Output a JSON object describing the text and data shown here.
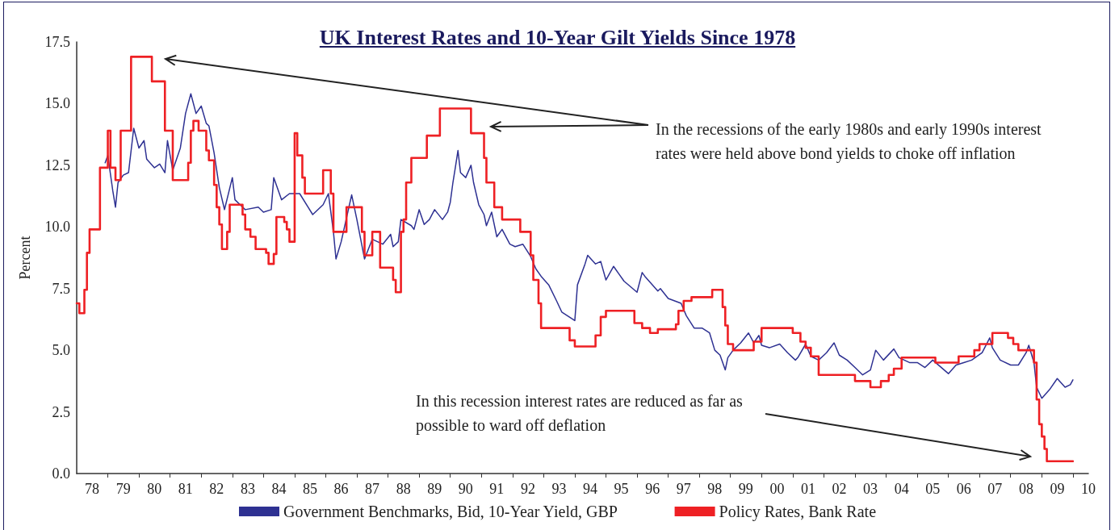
{
  "chart_data": {
    "type": "line",
    "title": "UK Interest Rates and 10-Year Gilt Yields Since 1978",
    "ylabel": "Percent",
    "annotations": [
      "In the recessions of the early 1980s and early 1990s interest rates were held above bond yields to choke off inflation",
      "In this recession interest rates are reduced as far as possible to ward off deflation"
    ],
    "xlim": [
      "1978-01",
      "2010-07"
    ],
    "xticks": [
      {
        "value": "1978-07",
        "label": "78"
      },
      {
        "value": "1979-01",
        "label": null
      },
      {
        "value": "1979-07",
        "label": "79"
      },
      {
        "value": "1980-01",
        "label": null
      },
      {
        "value": "1980-07",
        "label": "80"
      },
      {
        "value": "1981-01",
        "label": null
      },
      {
        "value": "1981-07",
        "label": "81"
      },
      {
        "value": "1982-01",
        "label": null
      },
      {
        "value": "1982-07",
        "label": "82"
      },
      {
        "value": "1983-01",
        "label": null
      },
      {
        "value": "1983-07",
        "label": "83"
      },
      {
        "value": "1984-01",
        "label": null
      },
      {
        "value": "1984-07",
        "label": "84"
      },
      {
        "value": "1985-01",
        "label": null
      },
      {
        "value": "1985-07",
        "label": "85"
      },
      {
        "value": "1986-01",
        "label": null
      },
      {
        "value": "1986-07",
        "label": "86"
      },
      {
        "value": "1987-01",
        "label": null
      },
      {
        "value": "1987-07",
        "label": "87"
      },
      {
        "value": "1988-01",
        "label": null
      },
      {
        "value": "1988-07",
        "label": "88"
      },
      {
        "value": "1989-01",
        "label": null
      },
      {
        "value": "1989-07",
        "label": "89"
      },
      {
        "value": "1990-01",
        "label": null
      },
      {
        "value": "1990-07",
        "label": "90"
      },
      {
        "value": "1991-01",
        "label": null
      },
      {
        "value": "1991-07",
        "label": "91"
      },
      {
        "value": "1992-01",
        "label": null
      },
      {
        "value": "1992-07",
        "label": "92"
      },
      {
        "value": "1993-01",
        "label": null
      },
      {
        "value": "1993-07",
        "label": "93"
      },
      {
        "value": "1994-01",
        "label": null
      },
      {
        "value": "1994-07",
        "label": "94"
      },
      {
        "value": "1995-01",
        "label": null
      },
      {
        "value": "1995-07",
        "label": "95"
      },
      {
        "value": "1996-01",
        "label": null
      },
      {
        "value": "1996-07",
        "label": "96"
      },
      {
        "value": "1997-01",
        "label": null
      },
      {
        "value": "1997-07",
        "label": "97"
      },
      {
        "value": "1998-01",
        "label": null
      },
      {
        "value": "1998-07",
        "label": "98"
      },
      {
        "value": "1999-01",
        "label": null
      },
      {
        "value": "1999-07",
        "label": "99"
      },
      {
        "value": "2000-01",
        "label": null
      },
      {
        "value": "2000-07",
        "label": "00"
      },
      {
        "value": "2001-01",
        "label": null
      },
      {
        "value": "2001-07",
        "label": "01"
      },
      {
        "value": "2002-01",
        "label": null
      },
      {
        "value": "2002-07",
        "label": "02"
      },
      {
        "value": "2003-01",
        "label": null
      },
      {
        "value": "2003-07",
        "label": "03"
      },
      {
        "value": "2004-01",
        "label": null
      },
      {
        "value": "2004-07",
        "label": "04"
      },
      {
        "value": "2005-01",
        "label": null
      },
      {
        "value": "2005-07",
        "label": "05"
      },
      {
        "value": "2006-01",
        "label": null
      },
      {
        "value": "2006-07",
        "label": "06"
      },
      {
        "value": "2007-01",
        "label": null
      },
      {
        "value": "2007-07",
        "label": "07"
      },
      {
        "value": "2008-01",
        "label": null
      },
      {
        "value": "2008-07",
        "label": "08"
      },
      {
        "value": "2009-01",
        "label": null
      },
      {
        "value": "2009-07",
        "label": "09"
      },
      {
        "value": "2010-01",
        "label": null
      },
      {
        "value": "2010-07",
        "label": "10"
      }
    ],
    "ylim": [
      0,
      17.5
    ],
    "yticks": [
      {
        "value": 0,
        "label": "0.0"
      },
      {
        "value": 2.5,
        "label": "2.5"
      },
      {
        "value": 5,
        "label": "5.0"
      },
      {
        "value": 7.5,
        "label": "7.5"
      },
      {
        "value": 10,
        "label": "10.0"
      },
      {
        "value": 12.5,
        "label": "12.5"
      },
      {
        "value": 15,
        "label": "15.0"
      },
      {
        "value": 17.5,
        "label": "17.5"
      }
    ],
    "grid": false,
    "legend": "bottom",
    "marker": "none",
    "line_style": "solid",
    "series": [
      {
        "name": "Government Benchmarks, Bid, 10-Year Yield, GBP",
        "color": "#2e3192",
        "x": [
          "1978-12",
          "1979-01",
          "1979-03",
          "1979-04",
          "1979-05",
          "1979-07",
          "1979-09",
          "1979-11",
          "1980-01",
          "1980-03",
          "1980-04",
          "1980-07",
          "1980-09",
          "1980-11",
          "1980-12",
          "1981-02",
          "1981-05",
          "1981-07",
          "1981-09",
          "1981-11",
          "1982-01",
          "1982-03",
          "1982-04",
          "1982-06",
          "1982-08",
          "1982-10",
          "1983-01",
          "1983-02",
          "1983-06",
          "1983-11",
          "1984-01",
          "1984-04",
          "1984-05",
          "1984-08",
          "1984-11",
          "1985-03",
          "1985-08",
          "1985-12",
          "1986-02",
          "1986-04",
          "1986-05",
          "1986-07",
          "1986-11",
          "1987-01",
          "1987-04",
          "1987-07",
          "1987-11",
          "1988-02",
          "1988-03",
          "1988-05",
          "1988-06",
          "1988-10",
          "1988-11",
          "1989-01",
          "1989-03",
          "1989-05",
          "1989-07",
          "1989-10",
          "1989-12",
          "1990-01",
          "1990-02",
          "1990-03",
          "1990-04",
          "1990-05",
          "1990-07",
          "1990-09",
          "1990-10",
          "1990-12",
          "1991-02",
          "1991-03",
          "1991-05",
          "1991-07",
          "1991-09",
          "1991-12",
          "1992-02",
          "1992-05",
          "1992-08",
          "1992-10",
          "1992-12",
          "1993-03",
          "1993-06",
          "1993-08",
          "1994-01",
          "1994-02",
          "1994-05",
          "1994-06",
          "1994-09",
          "1994-11",
          "1995-01",
          "1995-04",
          "1995-06",
          "1995-08",
          "1996-01",
          "1996-03",
          "1996-04",
          "1996-09",
          "1996-10",
          "1997-01",
          "1997-06",
          "1997-08",
          "1997-11",
          "1998-02",
          "1998-05",
          "1998-07",
          "1998-09",
          "1998-11",
          "1998-12",
          "1999-02",
          "1999-05",
          "1999-08",
          "1999-10",
          "1999-12",
          "2000-01",
          "2000-04",
          "2000-08",
          "2000-11",
          "2001-02",
          "2001-03",
          "2001-06",
          "2001-08",
          "2001-11",
          "2002-02",
          "2002-05",
          "2002-07",
          "2002-10",
          "2003-01",
          "2003-04",
          "2003-07",
          "2003-09",
          "2003-12",
          "2004-04",
          "2004-06",
          "2004-10",
          "2005-01",
          "2005-04",
          "2005-07",
          "2006-01",
          "2006-04",
          "2006-07",
          "2006-10",
          "2007-02",
          "2007-05",
          "2007-06",
          "2007-09",
          "2008-01",
          "2008-04",
          "2008-07",
          "2008-08",
          "2008-10",
          "2008-11",
          "2009-01",
          "2009-04",
          "2009-07",
          "2009-10",
          "2009-12",
          "2010-01"
        ],
        "values": [
          12.6,
          12.9,
          11.45,
          10.8,
          11.8,
          12.1,
          12.2,
          14.0,
          13.2,
          13.5,
          12.75,
          12.4,
          12.55,
          12.2,
          13.5,
          12.3,
          13.2,
          14.6,
          15.4,
          14.6,
          14.9,
          14.2,
          14.1,
          13.0,
          11.6,
          10.7,
          12.0,
          11.1,
          10.7,
          10.8,
          10.6,
          10.7,
          12.0,
          11.1,
          11.35,
          11.35,
          10.5,
          10.9,
          11.35,
          9.8,
          8.7,
          9.4,
          11.3,
          10.3,
          8.7,
          9.5,
          9.3,
          9.7,
          9.2,
          9.4,
          10.3,
          10.05,
          9.9,
          10.7,
          10.1,
          10.3,
          10.7,
          10.3,
          10.6,
          11.0,
          11.8,
          12.4,
          13.1,
          12.2,
          12.0,
          12.5,
          11.8,
          10.9,
          10.5,
          10.05,
          10.6,
          9.6,
          9.9,
          9.3,
          9.2,
          9.3,
          8.8,
          8.3,
          8.0,
          7.65,
          7.0,
          6.55,
          6.2,
          7.65,
          8.5,
          8.85,
          8.5,
          8.6,
          7.85,
          8.4,
          8.1,
          7.8,
          7.35,
          8.15,
          8.0,
          7.4,
          7.5,
          7.1,
          6.9,
          6.4,
          5.9,
          5.9,
          5.7,
          5.0,
          4.8,
          4.2,
          4.7,
          5.0,
          5.3,
          5.7,
          5.3,
          5.6,
          5.2,
          5.1,
          5.25,
          4.9,
          4.6,
          4.7,
          5.25,
          4.75,
          4.6,
          4.9,
          5.3,
          4.8,
          4.6,
          4.3,
          4.0,
          4.2,
          5.0,
          4.6,
          5.05,
          4.7,
          4.5,
          4.5,
          4.3,
          4.6,
          4.05,
          4.4,
          4.5,
          4.6,
          4.9,
          5.5,
          5.1,
          4.6,
          4.4,
          4.4,
          4.9,
          5.2,
          4.5,
          3.5,
          3.05,
          3.4,
          3.85,
          3.5,
          3.6,
          3.8
        ]
      },
      {
        "name": "Policy Rates, Bank Rate",
        "type": "step",
        "color": "#ee2024",
        "x": [
          "1978-01",
          "1978-02",
          "1978-04",
          "1978-05",
          "1978-06",
          "1978-10",
          "1979-01",
          "1979-02",
          "1979-04",
          "1979-06",
          "1979-10",
          "1980-06",
          "1980-11",
          "1981-02",
          "1981-08",
          "1981-09",
          "1981-10",
          "1981-12",
          "1982-03",
          "1982-04",
          "1982-06",
          "1982-07",
          "1982-08",
          "1982-09",
          "1982-11",
          "1982-12",
          "1983-05",
          "1983-06",
          "1983-08",
          "1983-10",
          "1984-02",
          "1984-03",
          "1984-05",
          "1984-06",
          "1984-09",
          "1984-10",
          "1984-11",
          "1985-01",
          "1985-02",
          "1985-04",
          "1985-05",
          "1985-12",
          "1986-03",
          "1986-04",
          "1986-09",
          "1987-03",
          "1987-04",
          "1987-07",
          "1987-10",
          "1988-03",
          "1988-04",
          "1988-06",
          "1988-07",
          "1988-08",
          "1988-10",
          "1989-04",
          "1989-09",
          "1990-09",
          "1991-02",
          "1991-03",
          "1991-06",
          "1991-09",
          "1992-04",
          "1992-08",
          "1992-09",
          "1992-11",
          "1992-12",
          "1993-11",
          "1994-01",
          "1994-09",
          "1994-11",
          "1995-01",
          "1995-12",
          "1996-03",
          "1996-06",
          "1996-09",
          "1997-04",
          "1997-05",
          "1997-07",
          "1997-10",
          "1998-06",
          "1998-10",
          "1998-11",
          "1998-12",
          "1999-02",
          "1999-10",
          "2000-01",
          "2001-01",
          "2001-04",
          "2001-06",
          "2001-08",
          "2001-11",
          "2003-01",
          "2003-07",
          "2003-11",
          "2004-02",
          "2004-04",
          "2004-07",
          "2005-08",
          "2006-05",
          "2006-11",
          "2007-01",
          "2007-06",
          "2007-12",
          "2008-02",
          "2008-04",
          "2008-10",
          "2008-11",
          "2008-12",
          "2009-01",
          "2009-02",
          "2009-03",
          "2010-01"
        ],
        "values": [
          6.9,
          6.5,
          7.45,
          8.95,
          9.9,
          12.4,
          13.9,
          12.4,
          11.9,
          13.9,
          16.9,
          15.9,
          13.9,
          11.9,
          12.6,
          13.9,
          14.3,
          13.9,
          13.1,
          12.7,
          11.7,
          10.8,
          10.1,
          9.1,
          9.8,
          10.9,
          10.5,
          9.9,
          9.6,
          9.1,
          8.95,
          8.5,
          8.9,
          10.4,
          10.2,
          9.9,
          9.4,
          13.8,
          12.9,
          12.0,
          11.35,
          12.3,
          11.35,
          9.8,
          10.8,
          9.8,
          8.85,
          9.8,
          8.35,
          7.85,
          7.35,
          9.8,
          10.3,
          11.8,
          12.8,
          13.7,
          14.8,
          13.8,
          12.8,
          11.8,
          10.8,
          10.3,
          9.8,
          8.85,
          7.85,
          6.9,
          5.9,
          5.4,
          5.15,
          5.6,
          6.35,
          6.6,
          6.1,
          5.9,
          5.7,
          5.85,
          6.05,
          6.6,
          7.0,
          7.15,
          7.45,
          6.75,
          6.0,
          5.25,
          5.0,
          5.35,
          5.9,
          5.7,
          5.35,
          5.1,
          4.75,
          4.0,
          3.75,
          3.5,
          3.75,
          4.0,
          4.25,
          4.7,
          4.5,
          4.75,
          5.0,
          5.25,
          5.7,
          5.5,
          5.25,
          5.0,
          4.5,
          3.0,
          2.0,
          1.5,
          1.0,
          0.5,
          0.5
        ]
      }
    ]
  }
}
